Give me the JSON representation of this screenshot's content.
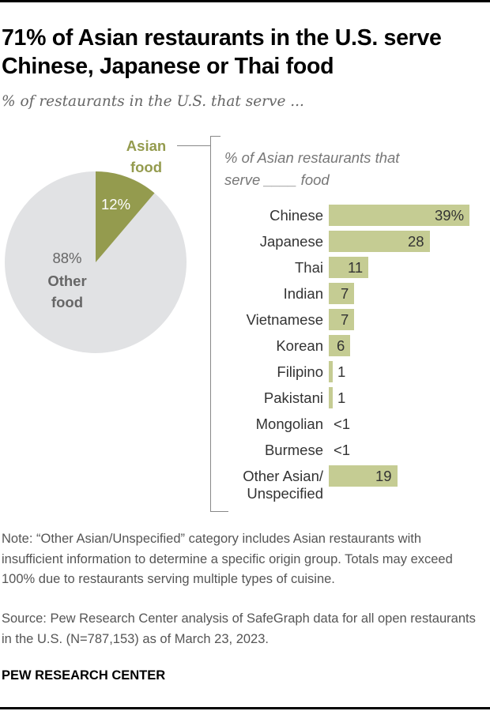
{
  "title": "71% of Asian restaurants in the U.S. serve Chinese, Japanese or Thai food",
  "subtitle": "% of restaurants in the U.S. that serve ...",
  "pie": {
    "asian_label_line1": "Asian",
    "asian_label_line2": "food",
    "asian_value": "12%",
    "other_value": "88%",
    "other_label_line1": "Other",
    "other_label_line2": "food"
  },
  "bars": {
    "title_line1": "% of Asian restaurants that",
    "title_line2": "serve ____ food",
    "rows": [
      {
        "label": "Chinese",
        "value": "39%"
      },
      {
        "label": "Japanese",
        "value": "28"
      },
      {
        "label": "Thai",
        "value": "11"
      },
      {
        "label": "Indian",
        "value": "7"
      },
      {
        "label": "Vietnamese",
        "value": "7"
      },
      {
        "label": "Korean",
        "value": "6"
      },
      {
        "label": "Filipino",
        "value": "1"
      },
      {
        "label": "Pakistani",
        "value": "1"
      },
      {
        "label": "Mongolian",
        "value": "<1"
      },
      {
        "label": "Burmese",
        "value": "<1"
      },
      {
        "label_line1": "Other Asian/",
        "label_line2": "Unspecified",
        "value": "19"
      }
    ]
  },
  "note": "Note: “Other Asian/Unspecified” category includes Asian restaurants with insufficient information to determine a specific origin group. Totals may exceed 100% due to restaurants serving multiple types of cuisine.",
  "source": "Source: Pew Research Center analysis of SafeGraph data for all open restaurants in the U.S. (N=787,153) as of March 23, 2023.",
  "brand": "PEW RESEARCH CENTER",
  "colors": {
    "asian_slice": "#949b4e",
    "other_slice": "#e1e2e4",
    "bar": "#c5cc93"
  },
  "chart_data": [
    {
      "type": "pie",
      "title": "% of restaurants in the U.S. that serve ...",
      "categories": [
        "Asian food",
        "Other food"
      ],
      "values": [
        12,
        88
      ]
    },
    {
      "type": "bar",
      "orientation": "horizontal",
      "title": "% of Asian restaurants that serve ____ food",
      "categories": [
        "Chinese",
        "Japanese",
        "Thai",
        "Indian",
        "Vietnamese",
        "Korean",
        "Filipino",
        "Pakistani",
        "Mongolian",
        "Burmese",
        "Other Asian/Unspecified"
      ],
      "values": [
        39,
        28,
        11,
        7,
        7,
        6,
        1,
        1,
        0.4,
        0.4,
        19
      ],
      "value_labels": [
        "39%",
        "28",
        "11",
        "7",
        "7",
        "6",
        "1",
        "1",
        "<1",
        "<1",
        "19"
      ],
      "xlabel": "",
      "ylabel": "",
      "grid": false
    }
  ]
}
